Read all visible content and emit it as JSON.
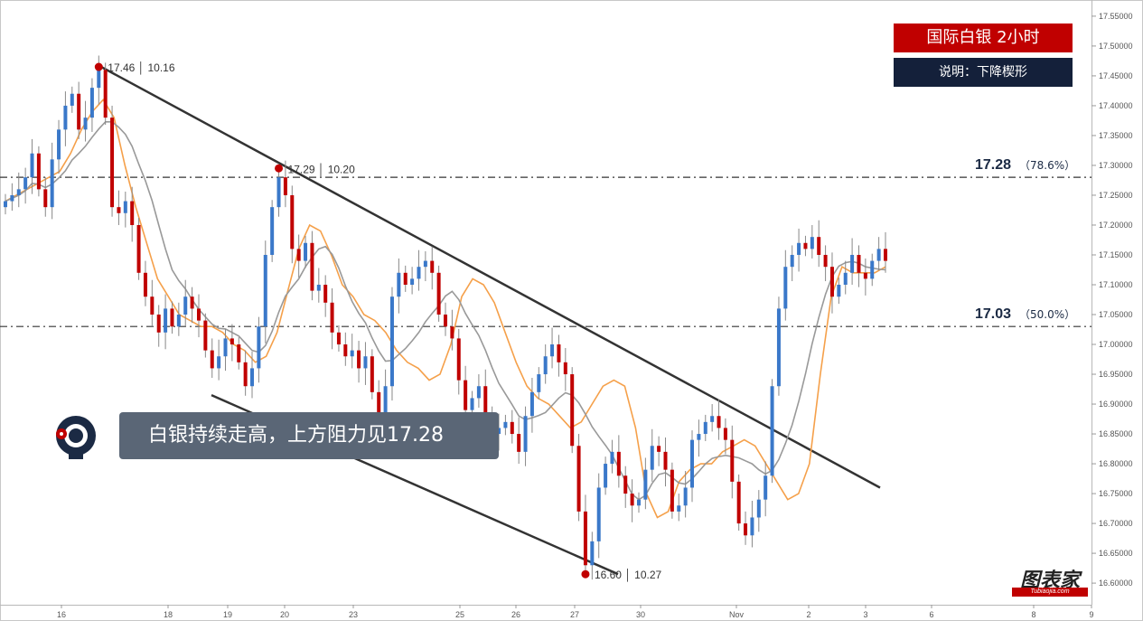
{
  "header": {
    "title": "国际白银  2小时",
    "subtitle": "说明：下降楔形"
  },
  "banner": {
    "text": "白银持续走高，上方阻力见17.28"
  },
  "watermark": {
    "text": "图表家",
    "url_text": "Tubiaojia.com"
  },
  "colors": {
    "up": "#3a78c9",
    "down": "#c00000",
    "ma_fast": "#f5a04a",
    "ma_slow": "#999999",
    "trend": "#333333"
  },
  "chart_data": {
    "type": "candlestick",
    "ylim": [
      16.585,
      17.565
    ],
    "y_ticks": [
      "17.55000",
      "17.50000",
      "17.45000",
      "17.40000",
      "17.35000",
      "17.30000",
      "17.25000",
      "17.20000",
      "17.15000",
      "17.10000",
      "17.05000",
      "17.00000",
      "16.95000",
      "16.90000",
      "16.85000",
      "16.80000",
      "16.75000",
      "16.70000",
      "16.65000",
      "16.60000"
    ],
    "x_ticks": [
      "16",
      "18",
      "19",
      "20",
      "23",
      "25",
      "26",
      "27",
      "30",
      "Nov",
      "2",
      "3",
      "6",
      "8",
      "9"
    ],
    "levels": [
      {
        "value": 17.28,
        "label": "17.28",
        "pct": "（78.6%）"
      },
      {
        "value": 17.03,
        "label": "17.03",
        "pct": "（50.0%）"
      }
    ],
    "pivots": [
      {
        "index": 14,
        "price": 17.465,
        "label": "17.46 │ 10.16"
      },
      {
        "index": 41,
        "price": 17.295,
        "label": "17.29 │ 10.20"
      },
      {
        "index": 87,
        "price": 16.615,
        "label": "16.60 │ 10.27"
      }
    ],
    "close": [
      17.24,
      17.25,
      17.26,
      17.28,
      17.32,
      17.26,
      17.23,
      17.31,
      17.36,
      17.4,
      17.42,
      17.36,
      17.38,
      17.43,
      17.46,
      17.38,
      17.23,
      17.22,
      17.24,
      17.2,
      17.12,
      17.08,
      17.05,
      17.02,
      17.06,
      17.03,
      17.05,
      17.08,
      17.06,
      17.04,
      16.99,
      16.96,
      16.98,
      17.01,
      17.0,
      16.97,
      16.93,
      16.96,
      17.03,
      17.15,
      17.23,
      17.28,
      17.25,
      17.16,
      17.14,
      17.17,
      17.09,
      17.1,
      17.07,
      17.02,
      17.0,
      16.98,
      16.99,
      16.96,
      16.98,
      16.92,
      16.87,
      16.93,
      17.08,
      17.12,
      17.1,
      17.11,
      17.13,
      17.14,
      17.12,
      17.05,
      17.03,
      17.01,
      16.94,
      16.89,
      16.91,
      16.93,
      16.88,
      16.85,
      16.86,
      16.87,
      16.85,
      16.82,
      16.88,
      16.92,
      16.95,
      16.98,
      17.0,
      16.97,
      16.95,
      16.83,
      16.72,
      16.63,
      16.67,
      16.76,
      16.8,
      16.82,
      16.78,
      16.75,
      16.73,
      16.74,
      16.79,
      16.83,
      16.82,
      16.79,
      16.72,
      16.73,
      16.76,
      16.84,
      16.85,
      16.87,
      16.88,
      16.86,
      16.84,
      16.77,
      16.7,
      16.68,
      16.71,
      16.74,
      16.78,
      16.93,
      17.06,
      17.13,
      17.15,
      17.17,
      17.16,
      17.18,
      17.15,
      17.13,
      17.08,
      17.1,
      17.12,
      17.15,
      17.12,
      17.11,
      17.14,
      17.16,
      17.14
    ],
    "ma_fast": [
      17.24,
      17.25,
      17.26,
      17.27,
      17.28,
      17.29,
      17.32,
      17.36,
      17.39,
      17.41,
      17.38,
      17.3,
      17.23,
      17.17,
      17.11,
      17.08,
      17.05,
      17.04,
      17.03,
      17.03,
      17.02,
      17.0,
      16.99,
      16.97,
      16.98,
      17.02,
      17.09,
      17.16,
      17.2,
      17.19,
      17.15,
      17.1,
      17.08,
      17.05,
      17.04,
      17.02,
      16.99,
      16.97,
      16.96,
      16.94,
      16.95,
      17.0,
      17.08,
      17.11,
      17.1,
      17.07,
      17.02,
      16.97,
      16.93,
      16.91,
      16.9,
      16.88,
      16.86,
      16.87,
      16.9,
      16.93,
      16.94,
      16.93,
      16.86,
      16.75,
      16.71,
      16.72,
      16.77,
      16.79,
      16.8,
      16.8,
      16.82,
      16.83,
      16.84,
      16.83,
      16.8,
      16.77,
      16.74,
      16.75,
      16.8,
      16.95,
      17.08,
      17.13,
      17.12,
      17.12,
      17.12,
      17.13
    ]
  }
}
